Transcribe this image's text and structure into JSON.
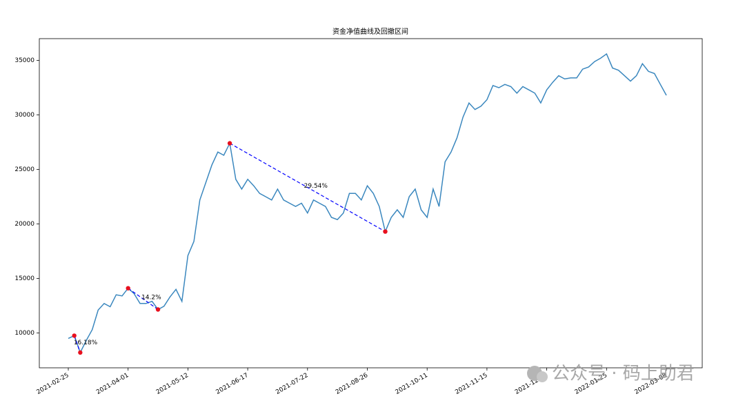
{
  "chart_data": {
    "type": "line",
    "title": "资金净值曲线及回撤区间",
    "categories": [
      "2021-02-25",
      null,
      null,
      null,
      null,
      null,
      null,
      null,
      null,
      null,
      "2021-04-01",
      null,
      null,
      null,
      null,
      null,
      null,
      null,
      null,
      null,
      "2021-05-12",
      null,
      null,
      null,
      null,
      null,
      null,
      null,
      null,
      null,
      "2021-06-17",
      null,
      null,
      null,
      null,
      null,
      null,
      null,
      null,
      null,
      "2021-07-22",
      null,
      null,
      null,
      null,
      null,
      null,
      null,
      null,
      null,
      "2021-08-26",
      null,
      null,
      null,
      null,
      null,
      null,
      null,
      null,
      null,
      "2021-10-11",
      null,
      null,
      null,
      null,
      null,
      null,
      null,
      null,
      null,
      "2021-11-15",
      null,
      null,
      null,
      null,
      null,
      null,
      null,
      null,
      null,
      "2021-12-20",
      null,
      null,
      null,
      null,
      null,
      null,
      null,
      null,
      null,
      "2022-01-25",
      null,
      null,
      null,
      null,
      null,
      null,
      null,
      null,
      null,
      "2022-03-08"
    ],
    "values": [
      9500,
      9750,
      8200,
      9300,
      10300,
      12100,
      12700,
      12400,
      13500,
      13400,
      14100,
      13600,
      12700,
      12700,
      12900,
      12150,
      12450,
      13300,
      14000,
      12900,
      17100,
      18400,
      22200,
      23800,
      25400,
      26600,
      26300,
      27400,
      24100,
      23200,
      24100,
      23500,
      22800,
      22500,
      22200,
      23200,
      22200,
      21900,
      21600,
      21900,
      21000,
      22200,
      21900,
      21600,
      20600,
      20400,
      21000,
      22800,
      22800,
      22200,
      23500,
      22800,
      21600,
      19300,
      20600,
      21300,
      20600,
      22500,
      23200,
      21300,
      20600,
      23200,
      21600,
      25700,
      26600,
      27900,
      29800,
      31100,
      30500,
      30800,
      31400,
      32700,
      32500,
      32800,
      32600,
      32000,
      32600,
      32300,
      32000,
      31100,
      32300,
      33000,
      33600,
      33300,
      33400,
      33400,
      34200,
      34400,
      34900,
      35200,
      35600,
      34300,
      34100,
      33600,
      33100,
      33600,
      34700,
      34000,
      33800,
      32800,
      31800
    ],
    "color": "#3a87be",
    "ylim": [
      6800,
      37000
    ],
    "yticks": [
      10000,
      15000,
      20000,
      25000,
      30000,
      35000
    ],
    "drawdowns": [
      {
        "start": 1,
        "end": 2,
        "label": "16.18%"
      },
      {
        "start": 10,
        "end": 15,
        "label": "14.2%"
      },
      {
        "start": 27,
        "end": 53,
        "label": "29.54%"
      }
    ],
    "drawdown_color": "#0000ff",
    "marker_color": "#e8101e",
    "watermark": "公众号 · 码上助君"
  }
}
